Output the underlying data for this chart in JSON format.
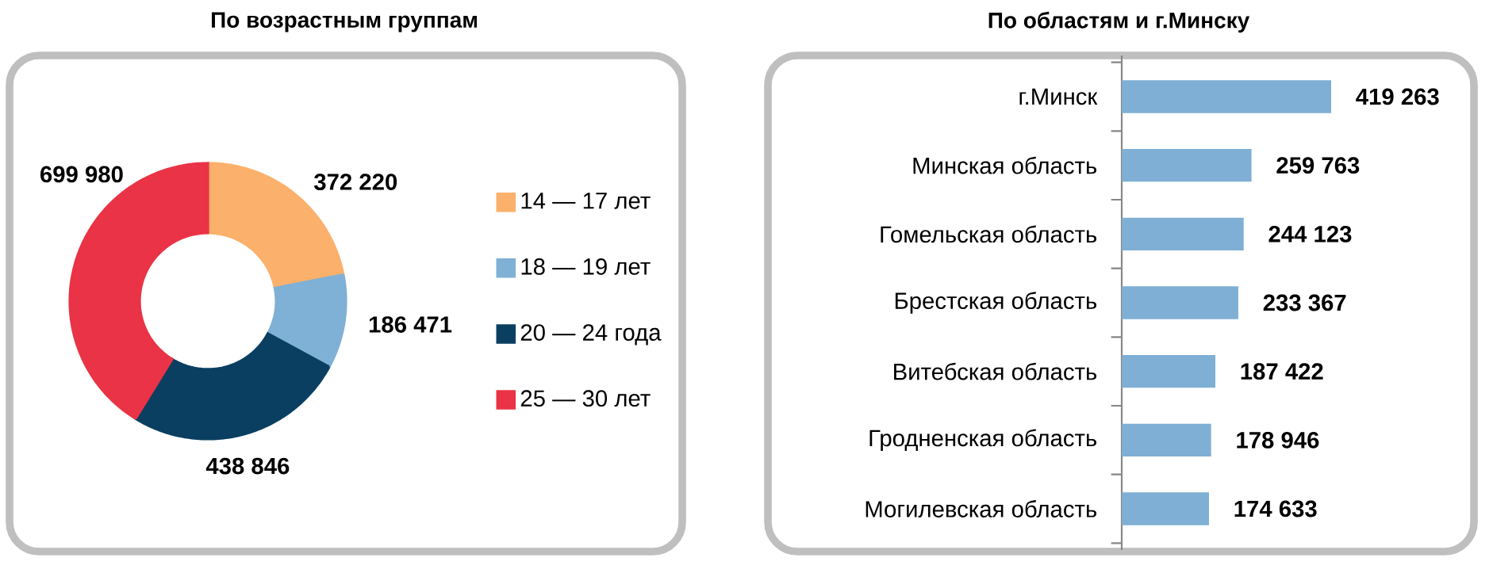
{
  "chart_data": [
    {
      "type": "donut",
      "title": "По возрастным группам",
      "categories": [
        "14 — 17 лет",
        "18 — 19 лет",
        "20 — 24 года",
        "25 — 30 лет"
      ],
      "values": [
        372220,
        186471,
        438846,
        699980
      ],
      "colors": [
        "#fbb06b",
        "#7fb0d6",
        "#0b3f61",
        "#ea3346"
      ],
      "value_labels": [
        "372 220",
        "186 471",
        "438 846",
        "699 980"
      ],
      "legend": "right"
    },
    {
      "type": "bar",
      "orientation": "horizontal",
      "title": "По областям и г.Минску",
      "categories": [
        "г.Минск",
        "Минская область",
        "Гомельская область",
        "Брестская область",
        "Витебская область",
        "Гродненская область",
        "Могилевская область"
      ],
      "values": [
        419263,
        259763,
        244123,
        233367,
        187422,
        178946,
        174633
      ],
      "color": "#7fafd4",
      "value_labels": [
        "419 263",
        "259 763",
        "244 123",
        "233 367",
        "187 422",
        "178 946",
        "174 633"
      ]
    }
  ]
}
